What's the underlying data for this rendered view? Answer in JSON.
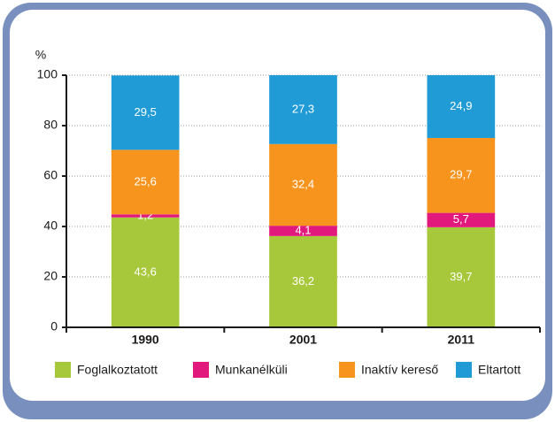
{
  "chart_data": {
    "type": "stacked_bar",
    "ylabel": "%",
    "categories": [
      "1990",
      "2001",
      "2011"
    ],
    "series": [
      {
        "name": "Foglalkoztatott",
        "color": "#a6c83a",
        "values": [
          43.6,
          36.2,
          39.7
        ],
        "value_labels": [
          "43,6",
          "36,2",
          "39,7"
        ]
      },
      {
        "name": "Munkanélküli",
        "color": "#e2197d",
        "values": [
          1.2,
          4.1,
          5.7
        ],
        "value_labels": [
          "1,2",
          "4,1",
          "5,7"
        ]
      },
      {
        "name": "Inaktív kereső",
        "color": "#f7941e",
        "values": [
          25.6,
          32.4,
          29.7
        ],
        "value_labels": [
          "25,6",
          "32,4",
          "29,7"
        ]
      },
      {
        "name": "Eltartott",
        "color": "#219bd6",
        "values": [
          29.5,
          27.3,
          24.9
        ],
        "value_labels": [
          "29,5",
          "27,3",
          "24,9"
        ]
      }
    ],
    "ylim": [
      0,
      100
    ],
    "yticks": [
      0,
      20,
      40,
      60,
      80,
      100
    ],
    "grid": true,
    "legend": "bottom"
  }
}
